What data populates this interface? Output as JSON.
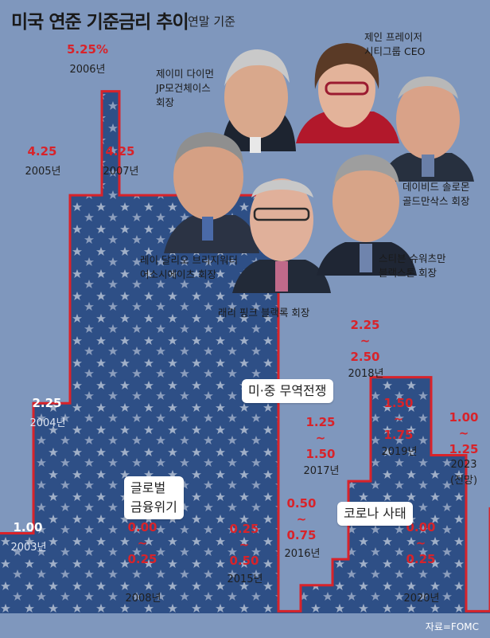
{
  "title": "미국 연준 기준금리 추이",
  "subtitle": "연말 기준",
  "source": "자료=FOMC",
  "colors": {
    "background": "#7f97bd",
    "step_fill": "#2e4f86",
    "step_line": "#d8232a",
    "highlight": "#d8232a",
    "star": "#ffffff"
  },
  "chart_data": {
    "type": "area",
    "step": true,
    "title": "미국 연준 기준금리 추이",
    "subtitle": "연말 기준",
    "ylabel": "",
    "xlabel": "",
    "ylim": [
      0,
      5.5
    ],
    "points": [
      {
        "year": "2003년",
        "label": "1.00",
        "value": 1.0
      },
      {
        "year": "2004년",
        "label": "2.25",
        "value": 2.25
      },
      {
        "year": "2005년",
        "label": "4.25",
        "value": 4.25
      },
      {
        "year": "2006년",
        "label": "5.25%",
        "value": 5.25
      },
      {
        "year": "2007년",
        "label": "4.25",
        "value": 4.25
      },
      {
        "year": "2008년",
        "label": "0.00\n~\n0.25",
        "value": 0.25
      },
      {
        "year": "2015년",
        "label": "0.25\n~\n0.50",
        "value": 0.5
      },
      {
        "year": "2016년",
        "label": "0.50\n~\n0.75",
        "value": 0.75
      },
      {
        "year": "2017년",
        "label": "1.25\n~\n1.50",
        "value": 1.5
      },
      {
        "year": "2018년",
        "label": "2.25\n~\n2.50",
        "value": 2.5
      },
      {
        "year": "2019년",
        "label": "1.50\n~\n1.75",
        "value": 1.75
      },
      {
        "year": "2020년",
        "label": "0.00\n~\n0.25",
        "value": 0.25
      },
      {
        "year": "2023\n(전망)",
        "label": "1.00\n~\n1.25",
        "value": 1.25
      }
    ],
    "annotations": [
      "글로벌\n금융위기",
      "미·중 무역전쟁",
      "코로나 사태"
    ]
  },
  "people": [
    {
      "label": "제이미 다이먼\nJP모건체이스\n회장"
    },
    {
      "label": "제인 프레이저\n시티그룹 CEO"
    },
    {
      "label": "데이비드 솔로몬\n골드만삭스 회장"
    },
    {
      "label": "레이 달리오 브리지워터\n어소시에이츠 회장"
    },
    {
      "label": "스티븐 슈워츠만\n블랙스톤 회장"
    },
    {
      "label": "래리 핑크 블랙록 회장"
    }
  ]
}
